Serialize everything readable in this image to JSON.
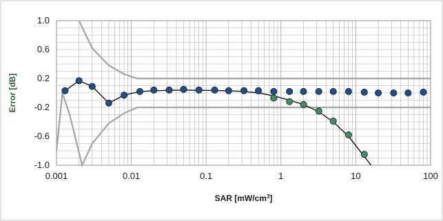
{
  "chart_data": {
    "type": "scatter",
    "title": "",
    "xlabel": "SAR [mW/cm",
    "xlabel_superscript": "3",
    "xlabel_suffix": "]",
    "ylabel": "Error [dB]",
    "xscale": "log",
    "xlim": [
      0.001,
      100
    ],
    "ylim": [
      -1.0,
      1.0
    ],
    "x_ticks": [
      {
        "value": 0.001,
        "label": "0.001"
      },
      {
        "value": 0.01,
        "label": "0.01"
      },
      {
        "value": 0.1,
        "label": "0.1"
      },
      {
        "value": 1,
        "label": "1"
      },
      {
        "value": 10,
        "label": "10"
      },
      {
        "value": 100,
        "label": "100"
      }
    ],
    "y_ticks": [
      {
        "value": 1.0,
        "label": "1.0"
      },
      {
        "value": 0.6,
        "label": "0.6"
      },
      {
        "value": 0.2,
        "label": "0.2"
      },
      {
        "value": -0.2,
        "label": "-0.2"
      },
      {
        "value": -0.6,
        "label": "-0.6"
      },
      {
        "value": -1.0,
        "label": "-1.0"
      }
    ],
    "grid": true,
    "legend": "none",
    "colors": {
      "linearized": "#1f4e8c",
      "uncorrected": "#3f8f63",
      "fit": "#111111",
      "bound": "#a9a9a9",
      "grid": "#b0b0b0"
    },
    "series": [
      {
        "key": "linearized",
        "x": [
          0.0013,
          0.002,
          0.003,
          0.005,
          0.008,
          0.013,
          0.02,
          0.032,
          0.05,
          0.08,
          0.13,
          0.2,
          0.32,
          0.5,
          0.8,
          1.3,
          2,
          3.2,
          5,
          8,
          13,
          20,
          32,
          50,
          80
        ],
        "y": [
          0.03,
          0.17,
          0.09,
          -0.14,
          -0.03,
          0.02,
          0.04,
          0.04,
          0.05,
          0.04,
          0.04,
          0.03,
          0.03,
          0.03,
          0.02,
          0.02,
          0.02,
          0.02,
          0.02,
          0.02,
          0.01,
          0.0,
          0.0,
          0.0,
          0.01
        ]
      },
      {
        "key": "uncorrected",
        "x": [
          0.8,
          1.3,
          2,
          3.2,
          5,
          8,
          13
        ],
        "y": [
          -0.07,
          -0.12,
          -0.16,
          -0.25,
          -0.39,
          -0.58,
          -0.85
        ]
      },
      {
        "key": "fit",
        "x": [
          0.0013,
          0.002,
          0.003,
          0.005,
          0.008,
          0.013,
          0.02,
          0.05,
          0.1,
          0.2,
          0.32,
          0.5,
          0.8,
          1.3,
          2,
          3.2,
          5,
          8,
          13,
          16
        ],
        "y": [
          0.03,
          0.17,
          0.09,
          -0.14,
          -0.03,
          0.02,
          0.03,
          0.04,
          0.035,
          0.03,
          0.02,
          0.0,
          -0.04,
          -0.1,
          -0.16,
          -0.26,
          -0.4,
          -0.6,
          -0.88,
          -1.0
        ]
      },
      {
        "key": "upper-bound",
        "x": [
          0.002,
          0.003,
          0.005,
          0.008,
          0.012,
          0.02,
          0.05,
          100
        ],
        "y": [
          1.0,
          0.62,
          0.38,
          0.26,
          0.2,
          0.2,
          0.2,
          0.2
        ]
      },
      {
        "key": "lower-bound",
        "x": [
          0.0012,
          0.0015,
          0.0022,
          0.003,
          0.005,
          0.008,
          0.012,
          0.02,
          0.05,
          100
        ],
        "y": [
          0.0,
          -0.3,
          -1.0,
          -0.7,
          -0.42,
          -0.28,
          -0.2,
          -0.2,
          -0.2,
          -0.2
        ]
      },
      {
        "key": "lower-left-bound",
        "x": [
          0.001,
          0.0012
        ],
        "y": [
          -0.8,
          0.0
        ]
      }
    ]
  }
}
